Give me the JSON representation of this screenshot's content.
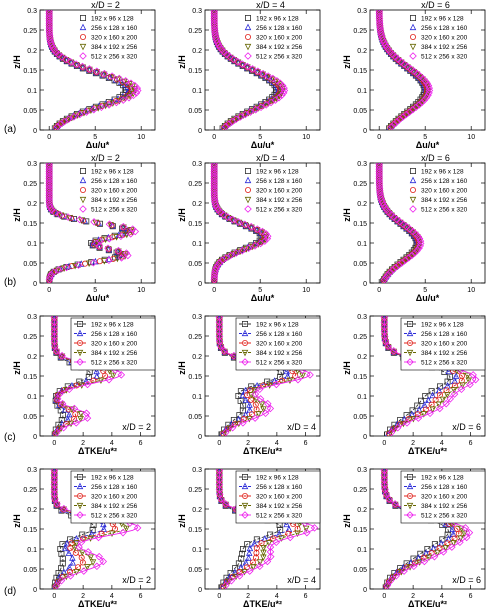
{
  "figure": {
    "row_labels": [
      "(a)",
      "(b)",
      "(c)",
      "(d)"
    ],
    "legend_entries": [
      "192 x 96 x 128",
      "256 x 128 x 160",
      "320 x 160 x 200",
      "384 x 192 x 256",
      "512 x 256 x 320"
    ],
    "series_colors": [
      "#333333",
      "#2a2ad8",
      "#e0201a",
      "#666600",
      "#ee22ee"
    ],
    "series_markers": [
      "square",
      "triangle-up",
      "circle",
      "triangle-down",
      "diamond"
    ]
  },
  "chart_data": [
    {
      "type": "scatter",
      "row": "a",
      "col": 1,
      "annotation": "x/D = 2",
      "xlabel": "Δu/u*",
      "ylabel": "z/H",
      "xlim": [
        -1,
        11.5
      ],
      "ylim": [
        0,
        0.3
      ],
      "xticks": [
        0,
        5,
        10
      ],
      "yticks": [
        0,
        0.05,
        0.1,
        0.15,
        0.2,
        0.25,
        0.3
      ],
      "legend": "top-right",
      "profile": {
        "kind": "wake",
        "peak": 9.0,
        "z0": 0.1,
        "sig": 0.042,
        "spread": 0.07
      }
    },
    {
      "type": "scatter",
      "row": "a",
      "col": 2,
      "annotation": "x/D = 4",
      "xlabel": "Δu/u*",
      "ylabel": "z/H",
      "xlim": [
        -1,
        11.5
      ],
      "ylim": [
        0,
        0.3
      ],
      "xticks": [
        0,
        5,
        10
      ],
      "yticks": [
        0,
        0.05,
        0.1,
        0.15,
        0.2,
        0.25,
        0.3
      ],
      "legend": "top-right",
      "profile": {
        "kind": "wake",
        "peak": 7.2,
        "z0": 0.1,
        "sig": 0.048,
        "spread": 0.06
      }
    },
    {
      "type": "scatter",
      "row": "a",
      "col": 3,
      "annotation": "x/D = 6",
      "xlabel": "Δu/u*",
      "ylabel": "z/H",
      "xlim": [
        -1,
        11.5
      ],
      "ylim": [
        0,
        0.3
      ],
      "xticks": [
        0,
        5,
        10
      ],
      "yticks": [
        0,
        0.05,
        0.1,
        0.15,
        0.2,
        0.25,
        0.3
      ],
      "legend": "top-right",
      "profile": {
        "kind": "wake",
        "peak": 5.2,
        "z0": 0.1,
        "sig": 0.055,
        "spread": 0.05
      }
    },
    {
      "type": "scatter",
      "row": "b",
      "col": 1,
      "annotation": "x/D = 2",
      "xlabel": "Δu/u*",
      "ylabel": "z/H",
      "xlim": [
        -1,
        11.5
      ],
      "ylim": [
        0,
        0.3
      ],
      "xticks": [
        0,
        5,
        10
      ],
      "yticks": [
        0,
        0.05,
        0.1,
        0.15,
        0.2,
        0.25,
        0.3
      ],
      "legend": "top-right",
      "profile": {
        "kind": "double",
        "peak": 8.8,
        "z0": 0.13,
        "sig": 0.02,
        "peak2": 8.0,
        "z2": 0.07,
        "sig2": 0.018,
        "dip": 3.5,
        "spread": 0.06
      }
    },
    {
      "type": "scatter",
      "row": "b",
      "col": 2,
      "annotation": "x/D = 4",
      "xlabel": "Δu/u*",
      "ylabel": "z/H",
      "xlim": [
        -1,
        11.5
      ],
      "ylim": [
        0,
        0.3
      ],
      "xticks": [
        0,
        5,
        10
      ],
      "yticks": [
        0,
        0.05,
        0.1,
        0.15,
        0.2,
        0.25,
        0.3
      ],
      "legend": "top-right",
      "profile": {
        "kind": "wake",
        "peak": 5.5,
        "z0": 0.115,
        "sig": 0.03,
        "spread": 0.06
      }
    },
    {
      "type": "scatter",
      "row": "b",
      "col": 3,
      "annotation": "x/D = 6",
      "xlabel": "Δu/u*",
      "ylabel": "z/H",
      "xlim": [
        -1,
        11.5
      ],
      "ylim": [
        0,
        0.3
      ],
      "xticks": [
        0,
        5,
        10
      ],
      "yticks": [
        0,
        0.05,
        0.1,
        0.15,
        0.2,
        0.25,
        0.3
      ],
      "legend": "top-right",
      "profile": {
        "kind": "wake",
        "peak": 4.3,
        "z0": 0.1,
        "sig": 0.045,
        "spread": 0.05
      }
    },
    {
      "type": "line",
      "row": "c",
      "col": 1,
      "annotation": "x/D = 2",
      "xlabel": "ΔTKE/u*²",
      "ylabel": "z/H",
      "xlim": [
        -1,
        7
      ],
      "ylim": [
        0,
        0.3
      ],
      "xticks": [
        0,
        2,
        4,
        6
      ],
      "yticks": [
        0,
        0.05,
        0.1,
        0.15,
        0.2,
        0.25,
        0.3
      ],
      "legend": "top-right",
      "profile": {
        "kind": "tke",
        "peak": 3.6,
        "z0": 0.155,
        "sig": 0.022,
        "peak2": 1.5,
        "z2": 0.05,
        "sig2": 0.018,
        "spread": 0.3
      }
    },
    {
      "type": "line",
      "row": "c",
      "col": 2,
      "annotation": "x/D = 4",
      "xlabel": "ΔTKE/u*²",
      "ylabel": "z/H",
      "xlim": [
        -1,
        7
      ],
      "ylim": [
        0,
        0.3
      ],
      "xticks": [
        0,
        2,
        4,
        6
      ],
      "yticks": [
        0,
        0.05,
        0.1,
        0.15,
        0.2,
        0.25,
        0.3
      ],
      "legend": "top-right",
      "profile": {
        "kind": "tke",
        "peak": 5.3,
        "z0": 0.155,
        "sig": 0.024,
        "peak2": 2.6,
        "z2": 0.07,
        "sig2": 0.03,
        "spread": 0.18
      }
    },
    {
      "type": "line",
      "row": "c",
      "col": 3,
      "annotation": "x/D = 6",
      "xlabel": "ΔTKE/u*²",
      "ylabel": "z/H",
      "xlim": [
        -1,
        7
      ],
      "ylim": [
        0,
        0.3
      ],
      "xticks": [
        0,
        2,
        4,
        6
      ],
      "yticks": [
        0,
        0.05,
        0.1,
        0.15,
        0.2,
        0.25,
        0.3
      ],
      "legend": "top-right",
      "profile": {
        "kind": "tke",
        "peak": 5.0,
        "z0": 0.15,
        "sig": 0.03,
        "peak2": 3.0,
        "z2": 0.08,
        "sig2": 0.035,
        "spread": 0.15
      }
    },
    {
      "type": "line",
      "row": "d",
      "col": 1,
      "annotation": "x/D = 2",
      "xlabel": "ΔTKE/u*²",
      "ylabel": "z/H",
      "xlim": [
        -1,
        7
      ],
      "ylim": [
        0,
        0.3
      ],
      "xticks": [
        0,
        2,
        4,
        6
      ],
      "yticks": [
        0,
        0.05,
        0.1,
        0.15,
        0.2,
        0.25,
        0.3
      ],
      "legend": "top-right",
      "profile": {
        "kind": "tke",
        "peak": 4.3,
        "z0": 0.155,
        "sig": 0.022,
        "peak2": 2.0,
        "z2": 0.07,
        "sig2": 0.025,
        "spread": 0.35
      }
    },
    {
      "type": "line",
      "row": "d",
      "col": 2,
      "annotation": "x/D = 4",
      "xlabel": "ΔTKE/u*²",
      "ylabel": "z/H",
      "xlim": [
        -1,
        7
      ],
      "ylim": [
        0,
        0.3
      ],
      "xticks": [
        0,
        2,
        4,
        6
      ],
      "yticks": [
        0,
        0.05,
        0.1,
        0.15,
        0.2,
        0.25,
        0.3
      ],
      "legend": "top-right",
      "profile": {
        "kind": "tke",
        "peak": 5.2,
        "z0": 0.155,
        "sig": 0.025,
        "peak2": 2.5,
        "z2": 0.08,
        "sig2": 0.035,
        "spread": 0.2
      }
    },
    {
      "type": "line",
      "row": "d",
      "col": 3,
      "annotation": "x/D = 6",
      "xlabel": "ΔTKE/u*²",
      "ylabel": "z/H",
      "xlim": [
        -1,
        7
      ],
      "ylim": [
        0,
        0.3
      ],
      "xticks": [
        0,
        2,
        4,
        6
      ],
      "yticks": [
        0,
        0.05,
        0.1,
        0.15,
        0.2,
        0.25,
        0.3
      ],
      "legend": "top-right",
      "profile": {
        "kind": "tke",
        "peak": 4.5,
        "z0": 0.15,
        "sig": 0.032,
        "peak2": 2.5,
        "z2": 0.09,
        "sig2": 0.035,
        "spread": 0.12
      }
    }
  ]
}
